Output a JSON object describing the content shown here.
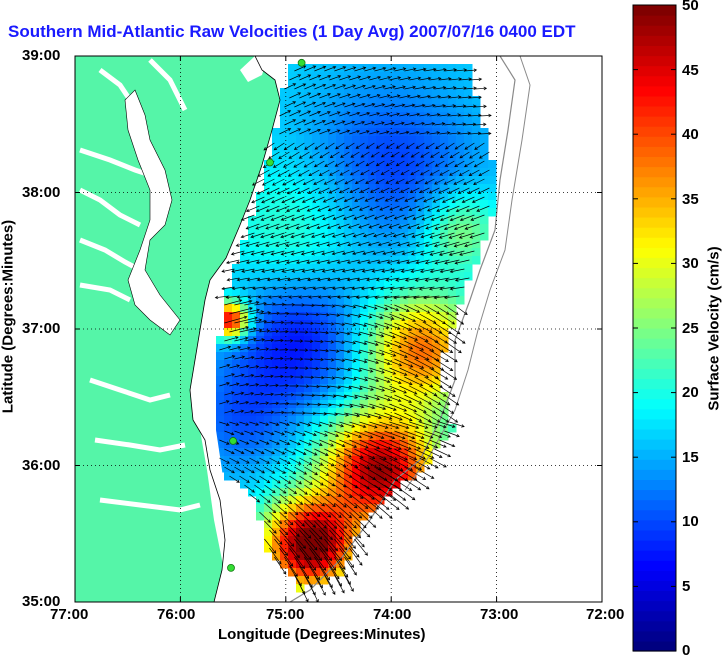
{
  "title": "Southern Mid-Atlantic Raw Velocities (1 Day Avg) 2007/07/16 0400 EDT",
  "x_axis": {
    "label": "Longitude (Degrees:Minutes)",
    "ticks": [
      "77:00",
      "76:00",
      "75:00",
      "74:00",
      "73:00",
      "72:00"
    ]
  },
  "y_axis": {
    "label": "Latitude (Degrees:Minutes)",
    "ticks": [
      "39:00",
      "38:00",
      "37:00",
      "36:00",
      "35:00"
    ]
  },
  "colorbar": {
    "label": "Surface Velocity (cm/s)",
    "ticks": [
      "50",
      "45",
      "40",
      "35",
      "30",
      "25",
      "20",
      "15",
      "10",
      "5",
      "0"
    ],
    "min": 0,
    "max": 50
  },
  "colors": {
    "land": "#55f5a8",
    "title": "#1a1aff",
    "station": "#33dd33"
  },
  "map": {
    "lon_range": [
      -77,
      -72
    ],
    "lat_range": [
      35,
      39
    ],
    "grid": true,
    "stations": [
      {
        "lon": -74.85,
        "lat": 38.95
      },
      {
        "lon": -75.15,
        "lat": 38.22
      },
      {
        "lon": -75.5,
        "lat": 36.18
      },
      {
        "lon": -75.52,
        "lat": 35.25
      }
    ]
  }
}
